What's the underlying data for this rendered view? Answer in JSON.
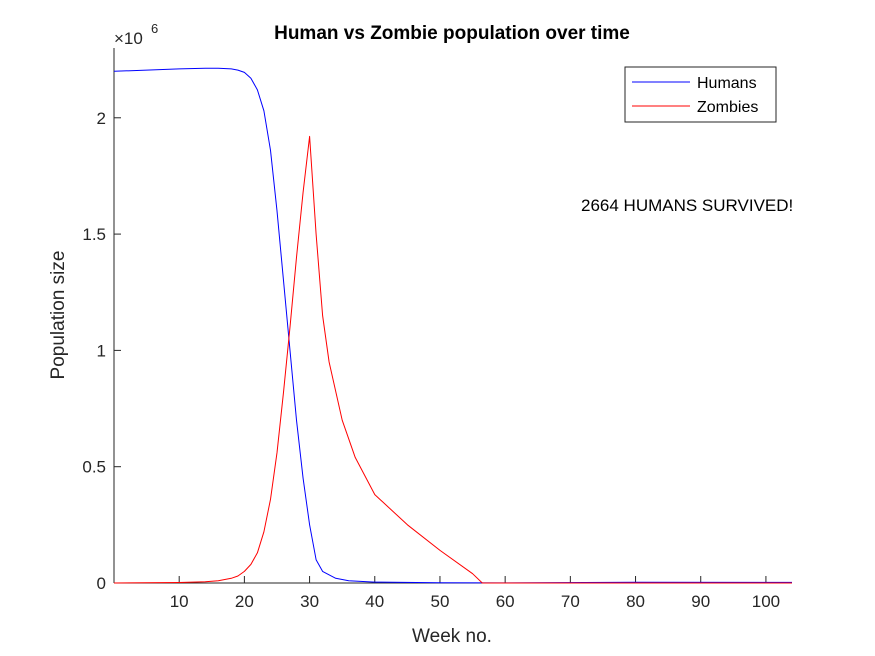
{
  "chart_data": {
    "type": "line",
    "title": "Human vs Zombie population over time",
    "xlabel": "Week no.",
    "ylabel": "Population size",
    "y_exponent_label": "×10",
    "y_exponent_power": "6",
    "xlim": [
      0,
      104
    ],
    "ylim": [
      0,
      2.3
    ],
    "x_ticks": [
      10,
      20,
      30,
      40,
      50,
      60,
      70,
      80,
      90,
      100
    ],
    "y_ticks": [
      0,
      0.5,
      1,
      1.5,
      2
    ],
    "y_tick_labels": [
      "0",
      "0.5",
      "1",
      "1.5",
      "2"
    ],
    "grid": false,
    "legend_position": "top-right",
    "annotation": "2664 HUMANS SURVIVED!",
    "colors": {
      "humans": "#0000ff",
      "zombies": "#ff0000",
      "axis": "#262626"
    },
    "series": [
      {
        "name": "Humans",
        "color": "#0000ff",
        "x": [
          0,
          5,
          10,
          14,
          16,
          18,
          19,
          20,
          21,
          22,
          23,
          24,
          25,
          26,
          27,
          28,
          29,
          30,
          31,
          32,
          34,
          36,
          40,
          50,
          60,
          80,
          104
        ],
        "y": [
          2.2,
          2.205,
          2.21,
          2.213,
          2.213,
          2.21,
          2.205,
          2.195,
          2.17,
          2.12,
          2.03,
          1.86,
          1.6,
          1.3,
          1.0,
          0.7,
          0.45,
          0.25,
          0.1,
          0.05,
          0.02,
          0.01,
          0.004,
          0.0015,
          0.0005,
          0.003,
          0.0027
        ]
      },
      {
        "name": "Zombies",
        "color": "#ff0000",
        "x": [
          0,
          10,
          14,
          16,
          18,
          19,
          20,
          21,
          22,
          23,
          24,
          25,
          26,
          27,
          28,
          29,
          30,
          31,
          32,
          33,
          35,
          37,
          40,
          45,
          50,
          55,
          56.5,
          60,
          80,
          104
        ],
        "y": [
          0,
          0.002,
          0.005,
          0.01,
          0.02,
          0.03,
          0.05,
          0.08,
          0.13,
          0.22,
          0.36,
          0.56,
          0.82,
          1.1,
          1.4,
          1.68,
          1.92,
          1.5,
          1.15,
          0.95,
          0.7,
          0.54,
          0.38,
          0.25,
          0.14,
          0.04,
          0.0,
          0.0,
          0.0,
          0.0
        ]
      }
    ]
  }
}
